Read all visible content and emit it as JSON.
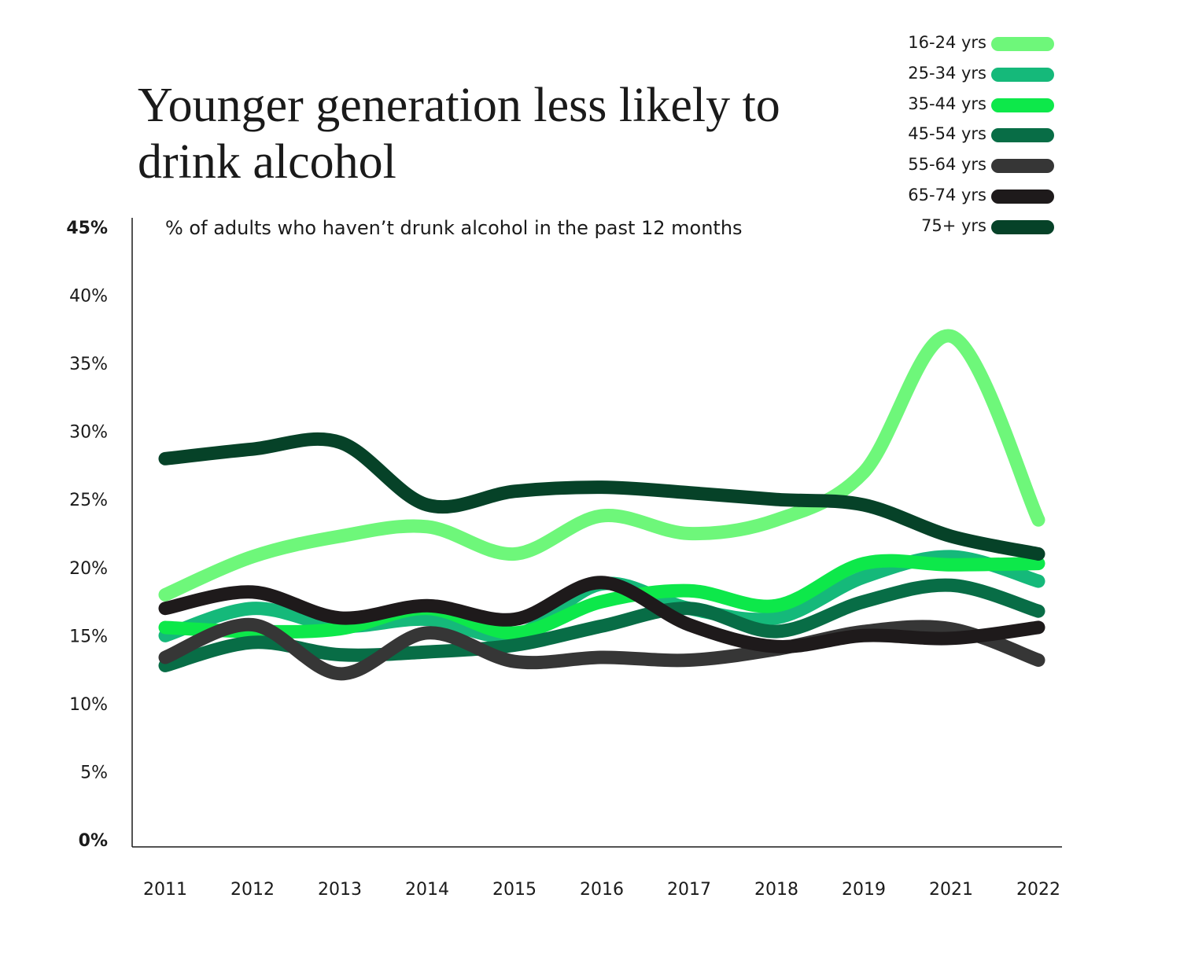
{
  "chart_data": {
    "type": "line",
    "title": "Younger generation less likely to drink alcohol",
    "subtitle": "% of adults who haven’t drunk alcohol in the past 12 months",
    "x": [
      "2011",
      "2012",
      "2013",
      "2014",
      "2015",
      "2016",
      "2017",
      "2018",
      "2019",
      "2021",
      "2022"
    ],
    "y_ticks": [
      "0%",
      "5%",
      "10%",
      "15%",
      "20%",
      "25%",
      "30%",
      "35%",
      "40%",
      "45%"
    ],
    "ylim": [
      0,
      45
    ],
    "legend_position": "top-right",
    "series": [
      {
        "name": "16-24 yrs",
        "color": "#6ef77a",
        "values": [
          18,
          20.8,
          22.3,
          23,
          21,
          23.8,
          22.5,
          23.5,
          27,
          37,
          23.5
        ]
      },
      {
        "name": "25-34 yrs",
        "color": "#15b97a",
        "values": [
          15,
          17,
          15.7,
          16.2,
          15,
          18.8,
          17,
          16.3,
          19.3,
          20.8,
          19
        ]
      },
      {
        "name": "35-44 yrs",
        "color": "#0de84a",
        "values": [
          15.6,
          15.3,
          15.5,
          17,
          15.2,
          17.5,
          18.3,
          17.2,
          20.3,
          20.2,
          20.3
        ]
      },
      {
        "name": "45-54 yrs",
        "color": "#086d46",
        "values": [
          12.8,
          14.5,
          13.6,
          13.8,
          14.3,
          15.7,
          17,
          15.3,
          17.5,
          18.7,
          16.8
        ]
      },
      {
        "name": "55-64 yrs",
        "color": "#363636",
        "values": [
          13.4,
          15.8,
          12.2,
          15.2,
          13.1,
          13.4,
          13.2,
          14,
          15.3,
          15.5,
          13.2
        ]
      },
      {
        "name": "65-74 yrs",
        "color": "#1e1a1b",
        "values": [
          17,
          18.2,
          16.3,
          17.2,
          16.2,
          18.9,
          15.8,
          14.2,
          15,
          14.8,
          15.6
        ]
      },
      {
        "name": "75+ yrs",
        "color": "#064228",
        "values": [
          28,
          28.7,
          29.2,
          24.6,
          25.6,
          25.9,
          25.5,
          25,
          24.6,
          22.3,
          21
        ]
      }
    ]
  }
}
